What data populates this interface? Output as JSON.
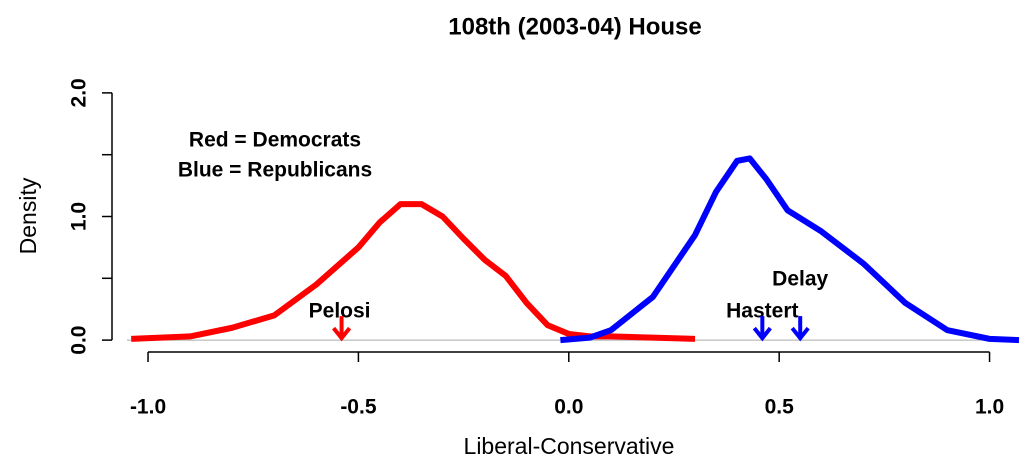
{
  "chart_data": {
    "type": "line",
    "title": "108th (2003-04) House",
    "xlabel": "Liberal-Conservative",
    "ylabel": "Density",
    "xlim": [
      -1.05,
      1.07
    ],
    "ylim": [
      -0.08,
      2.08
    ],
    "xticks": [
      {
        "value": -1,
        "label": "-1.0"
      },
      -0.5,
      {
        "value": 0,
        "label": "0.0"
      },
      0.5,
      {
        "value": 1,
        "label": "1.0"
      }
    ],
    "yticks": [
      {
        "value": 0,
        "label": "0.0"
      },
      {
        "value": 1,
        "label": "1.0"
      },
      {
        "value": 2,
        "label": "2.0"
      }
    ],
    "yminorticks": [
      0.5,
      1.5
    ],
    "series": [
      {
        "name": "Democrats",
        "color": "#ff0000",
        "x": [
          -1.04,
          -0.9,
          -0.8,
          -0.7,
          -0.6,
          -0.5,
          -0.45,
          -0.4,
          -0.35,
          -0.3,
          -0.25,
          -0.2,
          -0.15,
          -0.1,
          -0.05,
          0,
          0.05,
          0.1,
          0.2,
          0.3
        ],
        "values": [
          0.01,
          0.03,
          0.1,
          0.2,
          0.45,
          0.75,
          0.95,
          1.1,
          1.1,
          1.0,
          0.82,
          0.65,
          0.52,
          0.3,
          0.12,
          0.05,
          0.03,
          0.03,
          0.02,
          0.01
        ]
      },
      {
        "name": "Republicans",
        "color": "#0000ff",
        "x": [
          -0.02,
          0.05,
          0.1,
          0.2,
          0.3,
          0.35,
          0.4,
          0.43,
          0.47,
          0.52,
          0.6,
          0.7,
          0.8,
          0.9,
          1.0,
          1.07
        ],
        "values": [
          0,
          0.02,
          0.08,
          0.35,
          0.85,
          1.2,
          1.45,
          1.47,
          1.3,
          1.05,
          0.88,
          0.62,
          0.3,
          0.08,
          0.01,
          0
        ]
      }
    ],
    "legend_lines": [
      "Red = Democrats",
      "Blue = Republicans"
    ],
    "annotations": [
      {
        "label": "Pelosi",
        "x": -0.54,
        "color": "#ff0000"
      },
      {
        "label": "Hastert",
        "x": 0.46,
        "color": "#0000ff"
      },
      {
        "label": "Delay",
        "x": 0.55,
        "color": "#0000ff"
      }
    ]
  }
}
